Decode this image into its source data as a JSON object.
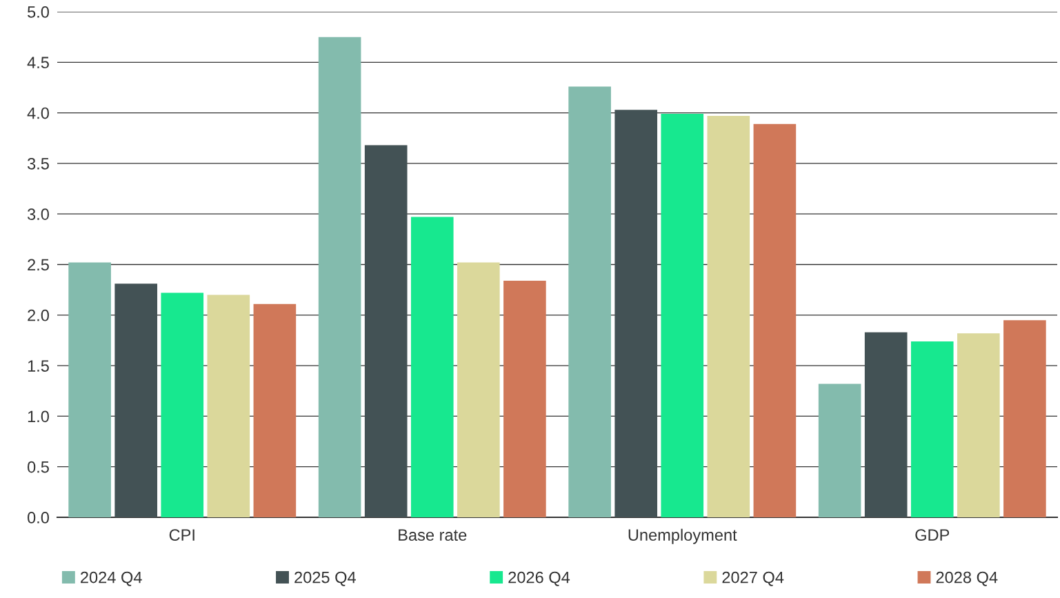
{
  "chart_data": {
    "type": "bar",
    "categories": [
      "CPI",
      "Base rate",
      "Unemployment",
      "GDP"
    ],
    "series": [
      {
        "name": "2024 Q4",
        "color": "#83bbad",
        "values": [
          2.52,
          4.75,
          4.26,
          1.32
        ]
      },
      {
        "name": "2025 Q4",
        "color": "#435255",
        "values": [
          2.31,
          3.68,
          4.03,
          1.83
        ]
      },
      {
        "name": "2026 Q4",
        "color": "#17e88f",
        "values": [
          2.22,
          2.97,
          3.99,
          1.74
        ]
      },
      {
        "name": "2027 Q4",
        "color": "#dbd89b",
        "values": [
          2.2,
          2.52,
          3.97,
          1.82
        ]
      },
      {
        "name": "2028 Q4",
        "color": "#d07859",
        "values": [
          2.11,
          2.34,
          3.89,
          1.95
        ]
      }
    ],
    "ylim": [
      0,
      5
    ],
    "yticks": [
      {
        "value": 0,
        "label": "0.0"
      },
      {
        "value": 0.5,
        "label": "0.5"
      },
      {
        "value": 1,
        "label": "1.0"
      },
      {
        "value": 1.5,
        "label": "1.5"
      },
      {
        "value": 2,
        "label": "2.0"
      },
      {
        "value": 2.5,
        "label": "2.5"
      },
      {
        "value": 3,
        "label": "3.0"
      },
      {
        "value": 3.5,
        "label": "3.5"
      },
      {
        "value": 4,
        "label": "4.0"
      },
      {
        "value": 4.5,
        "label": "4.5"
      },
      {
        "value": 5,
        "label": "5.0"
      }
    ],
    "grid": "y",
    "legend": "bottom"
  }
}
